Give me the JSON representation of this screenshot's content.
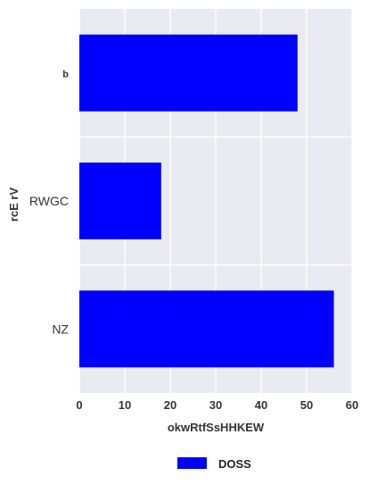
{
  "chart_data": {
    "type": "bar",
    "orientation": "horizontal",
    "categories": [
      "b",
      "RWGC",
      "NZ"
    ],
    "series": [
      {
        "name": "DOSS",
        "values": [
          48,
          18,
          56
        ],
        "color": "#0000ff"
      }
    ],
    "xlabel": "okwRtfSsHHKEW",
    "ylabel": "rcE rV",
    "xlim": [
      0,
      60
    ],
    "xticks": [
      0,
      10,
      20,
      30,
      40,
      50,
      60
    ],
    "grid": true,
    "background": "#eaeaf2",
    "legend_position": "bottom-center"
  }
}
